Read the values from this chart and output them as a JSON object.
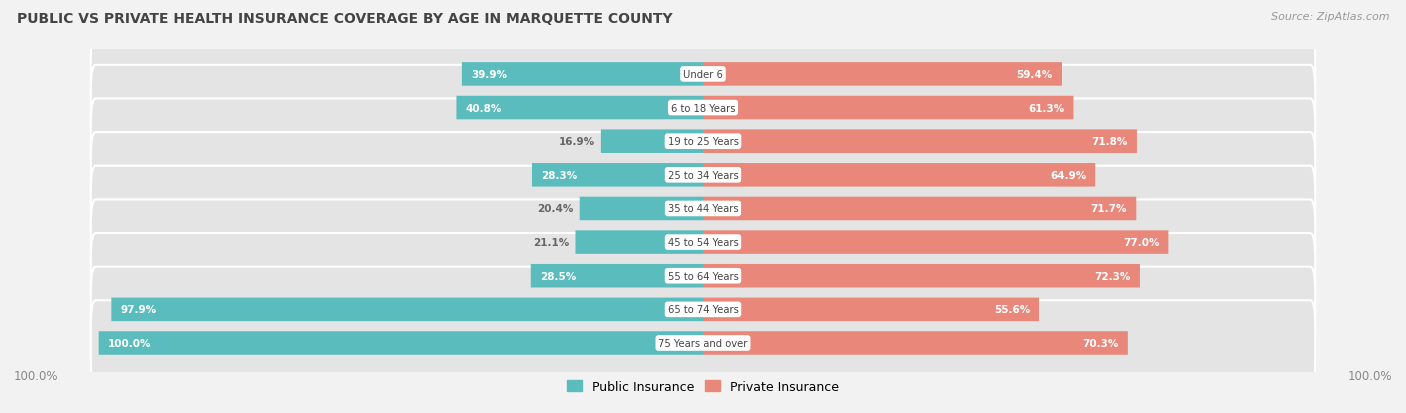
{
  "title": "PUBLIC VS PRIVATE HEALTH INSURANCE COVERAGE BY AGE IN MARQUETTE COUNTY",
  "source": "Source: ZipAtlas.com",
  "categories": [
    "Under 6",
    "6 to 18 Years",
    "19 to 25 Years",
    "25 to 34 Years",
    "35 to 44 Years",
    "45 to 54 Years",
    "55 to 64 Years",
    "65 to 74 Years",
    "75 Years and over"
  ],
  "public_values": [
    39.9,
    40.8,
    16.9,
    28.3,
    20.4,
    21.1,
    28.5,
    97.9,
    100.0
  ],
  "private_values": [
    59.4,
    61.3,
    71.8,
    64.9,
    71.7,
    77.0,
    72.3,
    55.6,
    70.3
  ],
  "public_color": "#5bbcbd",
  "private_color": "#e8877a",
  "bg_color": "#f2f2f2",
  "row_bg_color": "#e4e4e4",
  "row_border_color": "#ffffff",
  "title_color": "#444444",
  "source_color": "#999999",
  "label_white": "#ffffff",
  "label_dark": "#666666",
  "center_label_color": "#444444",
  "max_val": 100.0,
  "legend_public": "Public Insurance",
  "legend_private": "Private Insurance",
  "axis_label_color": "#888888",
  "axis_label_val": "100.0%"
}
